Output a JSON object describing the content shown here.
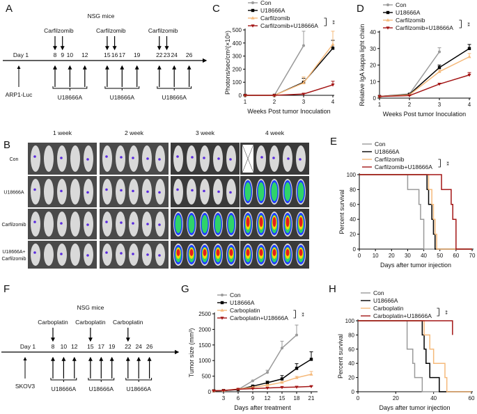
{
  "panels": {
    "A": "A",
    "B": "B",
    "C": "C",
    "D": "D",
    "E": "E",
    "F": "F",
    "G": "G",
    "H": "H"
  },
  "colors": {
    "con": "#9a9a9a",
    "u18666a": "#000000",
    "drug": "#f5b97a",
    "combo": "#a31515"
  },
  "timelineA": {
    "title": "NSG mice",
    "day1": "Day 1",
    "cell": "ARP1-Luc",
    "drug": "Carfilzomib",
    "drug_days": [
      [
        8,
        9
      ],
      [
        15,
        16
      ],
      [
        22,
        23
      ]
    ],
    "u_days": [
      [
        8,
        10,
        12
      ],
      [
        15,
        17,
        19
      ],
      [
        22,
        24,
        26
      ]
    ],
    "u_label": "U18666A",
    "day_labels": [
      "8",
      "9",
      "10",
      "12",
      "15",
      "16",
      "17",
      "19",
      "22",
      "23",
      "24",
      "26"
    ]
  },
  "timelineF": {
    "title": "NSG mice",
    "day1": "Day 1",
    "cell": "SKOV3",
    "drug": "Carboplatin",
    "drug_days": [
      [
        8
      ],
      [
        15
      ],
      [
        22
      ]
    ],
    "u_days": [
      [
        8,
        10,
        12
      ],
      [
        15,
        17,
        19
      ],
      [
        22,
        24,
        26
      ]
    ],
    "u_label": "U18666A",
    "day_labels": [
      "8",
      "10",
      "12",
      "15",
      "17",
      "19",
      "22",
      "24",
      "26"
    ]
  },
  "imaging": {
    "columns": [
      "1 week",
      "2 week",
      "3 week",
      "4 week"
    ],
    "rows": [
      "Con",
      "U18666A",
      "Carfilzomib",
      "U18666A+\nCarfilzomib"
    ]
  },
  "chart_data": [
    {
      "id": "C",
      "type": "line",
      "xlabel": "Weeks Post tumor Inoculation",
      "ylabel": "Photons/sec/cm²(×10⁸)",
      "xlim": [
        1,
        4
      ],
      "ylim": [
        0,
        500
      ],
      "xticks": [
        1,
        2,
        3,
        4
      ],
      "yticks": [
        0,
        100,
        200,
        300,
        400,
        500
      ],
      "significance": "**",
      "x": [
        1,
        2,
        3,
        4
      ],
      "series": [
        {
          "name": "Con",
          "key": "con",
          "marker": "circle",
          "values": [
            0,
            0,
            380,
            null
          ],
          "err": [
            0,
            0,
            490,
            null
          ]
        },
        {
          "name": "U18666A",
          "key": "u18666a",
          "marker": "square",
          "values": [
            0,
            0,
            100,
            360
          ],
          "err": [
            0,
            0,
            130,
            420
          ]
        },
        {
          "name": "Carfilzomib",
          "key": "drug",
          "marker": "triangle-up",
          "values": [
            0,
            0,
            95,
            390
          ],
          "err": [
            0,
            0,
            140,
            490
          ]
        },
        {
          "name": "Carfilzomib+U18666A",
          "key": "combo",
          "marker": "triangle-down",
          "values": [
            0,
            0,
            10,
            80
          ],
          "err": [
            0,
            0,
            14,
            108
          ]
        }
      ]
    },
    {
      "id": "D",
      "type": "line",
      "xlabel": "Weeks Post tumor Inoculation",
      "ylabel": "Relative IgA kappa light chain",
      "xlim": [
        1,
        4
      ],
      "ylim": [
        0,
        40
      ],
      "xticks": [
        1,
        2,
        3,
        4
      ],
      "yticks": [
        0,
        10,
        20,
        30,
        40
      ],
      "significance": "**",
      "x": [
        1,
        2,
        3,
        4
      ],
      "series": [
        {
          "name": "Con",
          "key": "con",
          "marker": "circle",
          "values": [
            1,
            2.5,
            28,
            null
          ],
          "err": [
            1,
            2.8,
            30.5,
            null
          ]
        },
        {
          "name": "U18666A",
          "key": "u18666a",
          "marker": "square",
          "values": [
            1,
            2.3,
            18.5,
            30
          ],
          "err": [
            1,
            2.5,
            20,
            32.5
          ]
        },
        {
          "name": "Carfilzomib",
          "key": "drug",
          "marker": "triangle-up",
          "values": [
            1,
            2,
            16,
            25
          ],
          "err": [
            1,
            2.2,
            17,
            27
          ]
        },
        {
          "name": "Carfilzomib+U18666A",
          "key": "combo",
          "marker": "triangle-down",
          "values": [
            1,
            1.5,
            8.5,
            14
          ],
          "err": [
            1,
            1.6,
            9,
            15.5
          ]
        }
      ]
    },
    {
      "id": "E",
      "type": "survival",
      "xlabel": "Days after tumor injection",
      "ylabel": "Percent survival",
      "xlim": [
        0,
        70
      ],
      "ylim": [
        0,
        100
      ],
      "xticks": [
        0,
        10,
        20,
        30,
        40,
        50,
        60,
        70
      ],
      "yticks": [
        0,
        20,
        40,
        60,
        80,
        100
      ],
      "significance": "**",
      "series": [
        {
          "name": "Con",
          "key": "con",
          "steps": [
            [
              0,
              100
            ],
            [
              30,
              80
            ],
            [
              37,
              60
            ],
            [
              38,
              40
            ],
            [
              40,
              0
            ]
          ]
        },
        {
          "name": "U18666A",
          "key": "u18666a",
          "steps": [
            [
              0,
              100
            ],
            [
              42,
              80
            ],
            [
              43,
              60
            ],
            [
              45,
              40
            ],
            [
              46,
              20
            ],
            [
              47,
              0
            ]
          ]
        },
        {
          "name": "Carfilzomib",
          "key": "drug",
          "steps": [
            [
              0,
              100
            ],
            [
              43,
              80
            ],
            [
              45,
              60
            ],
            [
              46,
              40
            ],
            [
              47,
              20
            ],
            [
              48,
              0
            ]
          ]
        },
        {
          "name": "Carfilzomib+U18666A",
          "key": "combo",
          "steps": [
            [
              0,
              100
            ],
            [
              51,
              80
            ],
            [
              57,
              60
            ],
            [
              58,
              40
            ],
            [
              60,
              0
            ]
          ]
        }
      ]
    },
    {
      "id": "G",
      "type": "line",
      "xlabel": "Days after treatment",
      "ylabel": "Tumor size (mm³)",
      "xlim": [
        0,
        22
      ],
      "ylim": [
        0,
        2500
      ],
      "xticks": [
        3,
        6,
        9,
        12,
        15,
        18,
        21
      ],
      "yticks": [
        0,
        500,
        1000,
        1500,
        2000,
        2500
      ],
      "significance": "**",
      "x": [
        1,
        3,
        6,
        9,
        12,
        15,
        18,
        21
      ],
      "series": [
        {
          "name": "Con",
          "key": "con",
          "marker": "circle",
          "values": [
            30,
            40,
            70,
            350,
            620,
            1400,
            1820,
            null
          ],
          "err": [
            35,
            45,
            80,
            370,
            690,
            1620,
            2140,
            null
          ]
        },
        {
          "name": "U18666A",
          "key": "u18666a",
          "marker": "square",
          "values": [
            30,
            40,
            70,
            180,
            290,
            410,
            750,
            1040
          ],
          "err": [
            35,
            45,
            80,
            200,
            340,
            520,
            900,
            1280
          ]
        },
        {
          "name": "Carboplatin",
          "key": "drug",
          "marker": "triangle-up",
          "values": [
            30,
            40,
            90,
            140,
            210,
            300,
            450,
            560
          ],
          "err": [
            35,
            45,
            95,
            150,
            230,
            320,
            490,
            650
          ]
        },
        {
          "name": "Carboplatin+U18666A",
          "key": "combo",
          "marker": "triangle-down",
          "values": [
            30,
            40,
            80,
            100,
            120,
            140,
            150,
            170
          ],
          "err": [
            35,
            45,
            85,
            105,
            125,
            145,
            155,
            180
          ]
        }
      ]
    },
    {
      "id": "H",
      "type": "survival",
      "xlabel": "Days after tumor injection",
      "ylabel": "Percent survival",
      "xlim": [
        0,
        60
      ],
      "ylim": [
        0,
        100
      ],
      "xticks": [
        0,
        20,
        40,
        60
      ],
      "yticks": [
        0,
        20,
        40,
        60,
        80,
        100
      ],
      "significance": "**",
      "series": [
        {
          "name": "Con",
          "key": "con",
          "steps": [
            [
              0,
              100
            ],
            [
              26,
              60
            ],
            [
              29,
              40
            ],
            [
              30,
              20
            ],
            [
              34,
              0
            ]
          ]
        },
        {
          "name": "U18666A",
          "key": "u18666a",
          "steps": [
            [
              0,
              100
            ],
            [
              34,
              80
            ],
            [
              35,
              60
            ],
            [
              36,
              40
            ],
            [
              38,
              20
            ],
            [
              43,
              0
            ]
          ]
        },
        {
          "name": "Carboplatin",
          "key": "drug",
          "steps": [
            [
              0,
              100
            ],
            [
              35,
              80
            ],
            [
              38,
              60
            ],
            [
              40,
              40
            ],
            [
              46,
              20
            ],
            [
              47,
              0
            ]
          ]
        },
        {
          "name": "Carboplatin+U18666A",
          "key": "combo",
          "steps": [
            [
              0,
              100
            ],
            [
              50,
              80
            ]
          ],
          "end": 50
        }
      ]
    }
  ]
}
